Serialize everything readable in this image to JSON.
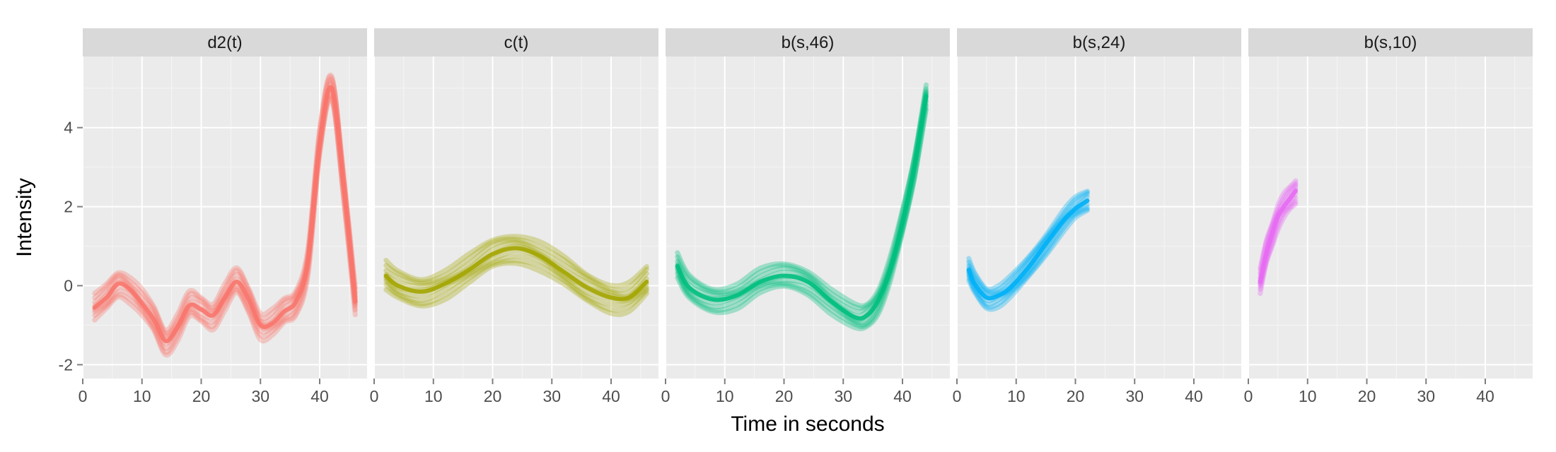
{
  "chart_data": {
    "type": "line",
    "facet_layout": "1 row x 5 columns, shared x and y axes",
    "xlabel": "Time in seconds",
    "ylabel": "Intensity",
    "xlim": [
      0,
      48
    ],
    "ylim": [
      -2.35,
      5.8
    ],
    "x_ticks": [
      0,
      10,
      20,
      30,
      40
    ],
    "y_ticks": [
      -2,
      0,
      2,
      4
    ],
    "grid": true,
    "legend": "none",
    "rendering": "many semi-transparent curves per panel forming a band",
    "panels": [
      {
        "title": "d2(t)",
        "color": "#F8766D",
        "center": [
          [
            2,
            -0.55
          ],
          [
            4,
            -0.3
          ],
          [
            6,
            0.05
          ],
          [
            8,
            -0.1
          ],
          [
            10,
            -0.45
          ],
          [
            12,
            -0.85
          ],
          [
            14,
            -1.4
          ],
          [
            16,
            -1.05
          ],
          [
            18,
            -0.5
          ],
          [
            20,
            -0.6
          ],
          [
            22,
            -0.75
          ],
          [
            24,
            -0.3
          ],
          [
            26,
            0.1
          ],
          [
            28,
            -0.35
          ],
          [
            30,
            -1.0
          ],
          [
            32,
            -0.95
          ],
          [
            34,
            -0.65
          ],
          [
            36,
            -0.4
          ],
          [
            38,
            0.6
          ],
          [
            40,
            3.6
          ],
          [
            42,
            5.0
          ],
          [
            44,
            2.6
          ],
          [
            46,
            -0.4
          ]
        ],
        "band_half_width": 0.32
      },
      {
        "title": "c(t)",
        "color": "#A3A500",
        "center": [
          [
            2,
            0.25
          ],
          [
            4,
            0.0
          ],
          [
            8,
            -0.15
          ],
          [
            12,
            0.05
          ],
          [
            16,
            0.4
          ],
          [
            20,
            0.8
          ],
          [
            24,
            0.95
          ],
          [
            28,
            0.75
          ],
          [
            32,
            0.35
          ],
          [
            36,
            -0.05
          ],
          [
            40,
            -0.3
          ],
          [
            43,
            -0.3
          ],
          [
            46,
            0.1
          ]
        ],
        "band_half_width": 0.35
      },
      {
        "title": "b(s,46)",
        "color": "#00BF7D",
        "center": [
          [
            2,
            0.5
          ],
          [
            4,
            -0.05
          ],
          [
            8,
            -0.35
          ],
          [
            12,
            -0.25
          ],
          [
            16,
            0.1
          ],
          [
            20,
            0.25
          ],
          [
            24,
            0.1
          ],
          [
            28,
            -0.4
          ],
          [
            32,
            -0.8
          ],
          [
            34,
            -0.75
          ],
          [
            36,
            -0.35
          ],
          [
            38,
            0.45
          ],
          [
            40,
            1.6
          ],
          [
            42,
            3.0
          ],
          [
            44,
            4.8
          ]
        ],
        "band_half_width": 0.3
      },
      {
        "title": "b(s,24)",
        "color": "#00B0F6",
        "center": [
          [
            2,
            0.4
          ],
          [
            3,
            0.05
          ],
          [
            5,
            -0.3
          ],
          [
            7,
            -0.25
          ],
          [
            9,
            -0.05
          ],
          [
            12,
            0.45
          ],
          [
            15,
            1.05
          ],
          [
            18,
            1.65
          ],
          [
            20,
            1.95
          ],
          [
            22,
            2.15
          ]
        ],
        "band_half_width": 0.26
      },
      {
        "title": "b(s,10)",
        "color": "#E76BF3",
        "center": [
          [
            2,
            0.1
          ],
          [
            3,
            0.8
          ],
          [
            4,
            1.3
          ],
          [
            5,
            1.75
          ],
          [
            6,
            2.0
          ],
          [
            7,
            2.2
          ],
          [
            8,
            2.4
          ]
        ],
        "band_half_width": 0.3
      }
    ]
  }
}
